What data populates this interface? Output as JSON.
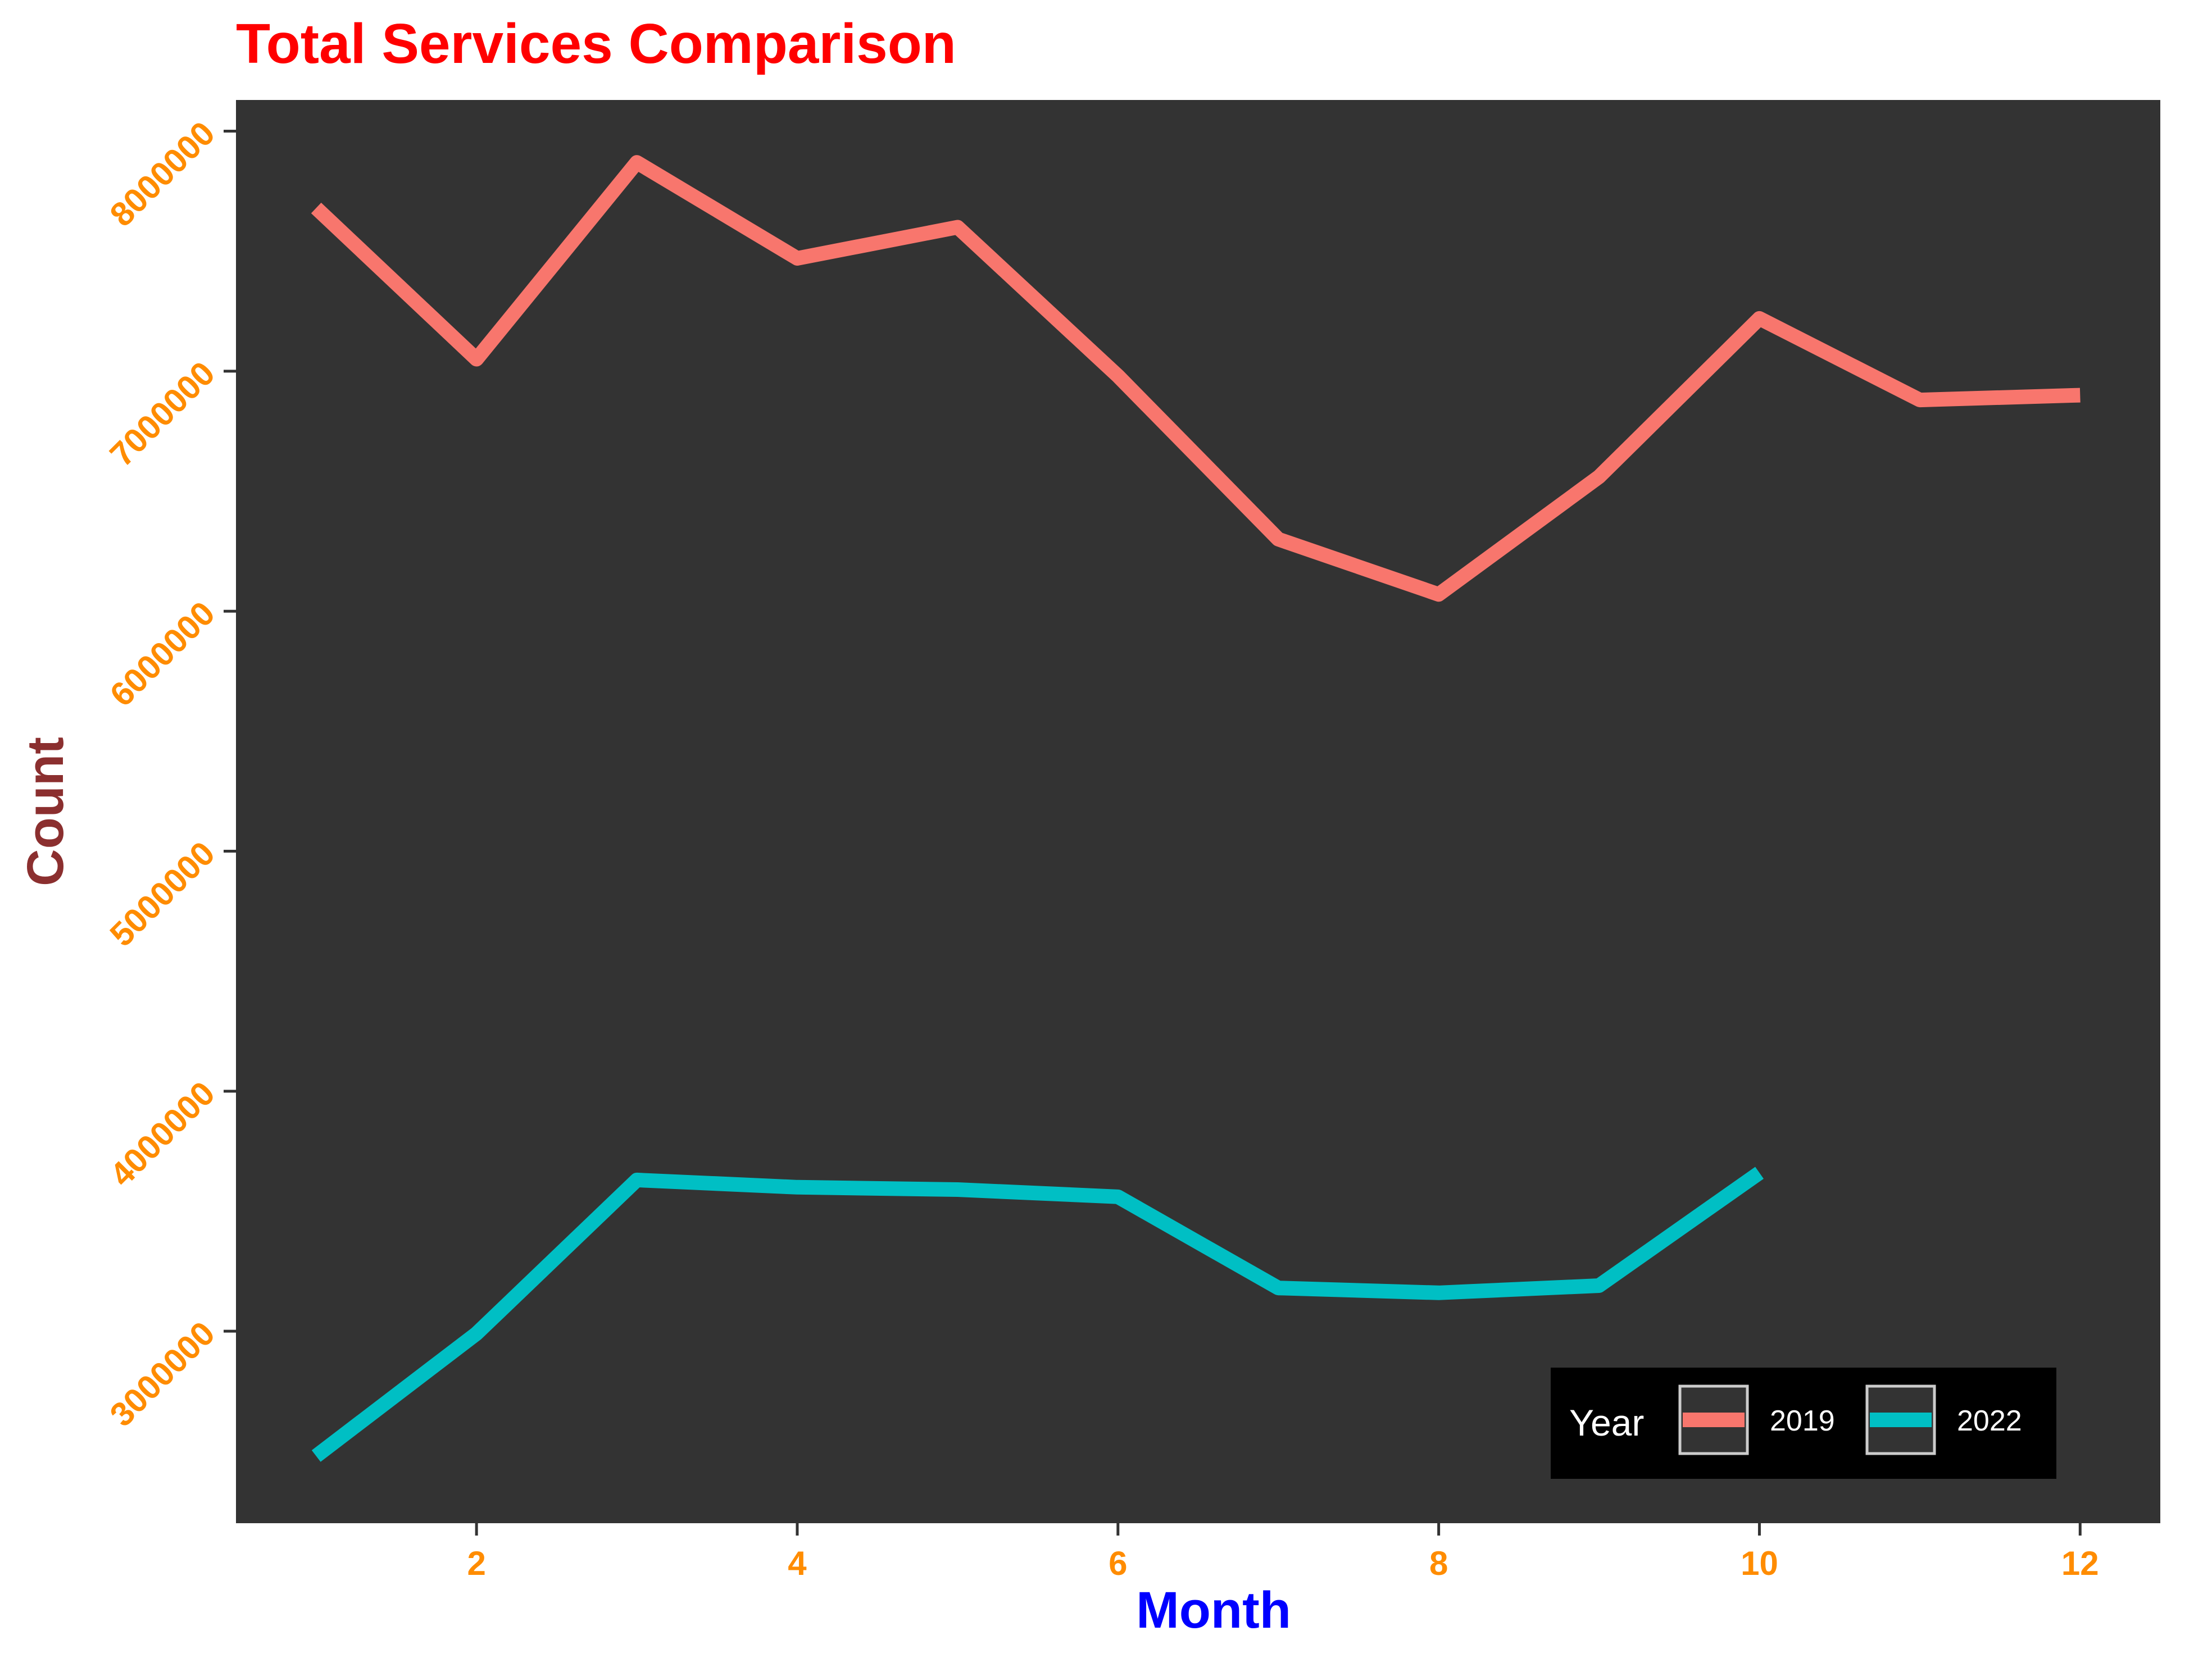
{
  "chart_data": {
    "type": "line",
    "title": "Total Services Comparison",
    "xlabel": "Month",
    "ylabel": "Count",
    "xlim": [
      0.5,
      12.5
    ],
    "ylim": [
      2200000,
      8130000
    ],
    "xticks": [
      2,
      4,
      6,
      8,
      10,
      12
    ],
    "yticks": [
      3000000,
      4000000,
      5000000,
      6000000,
      7000000,
      8000000
    ],
    "grid": false,
    "panel_background": "#333333",
    "legend": {
      "title": "Year",
      "position": "bottom-right",
      "background": "#000000"
    },
    "series": [
      {
        "name": "2019",
        "color": "#f8766d",
        "x": [
          1,
          2,
          3,
          4,
          5,
          6,
          7,
          8,
          9,
          10,
          11,
          12
        ],
        "values": [
          7680000,
          7050000,
          7870000,
          7470000,
          7600000,
          6980000,
          6300000,
          6070000,
          6560000,
          7220000,
          6880000,
          6900000
        ]
      },
      {
        "name": "2022",
        "color": "#00bfc4",
        "x": [
          1,
          2,
          3,
          4,
          5,
          6,
          7,
          8,
          9,
          10
        ],
        "values": [
          2480000,
          2990000,
          3630000,
          3600000,
          3590000,
          3560000,
          3180000,
          3160000,
          3190000,
          3660000
        ]
      }
    ]
  }
}
